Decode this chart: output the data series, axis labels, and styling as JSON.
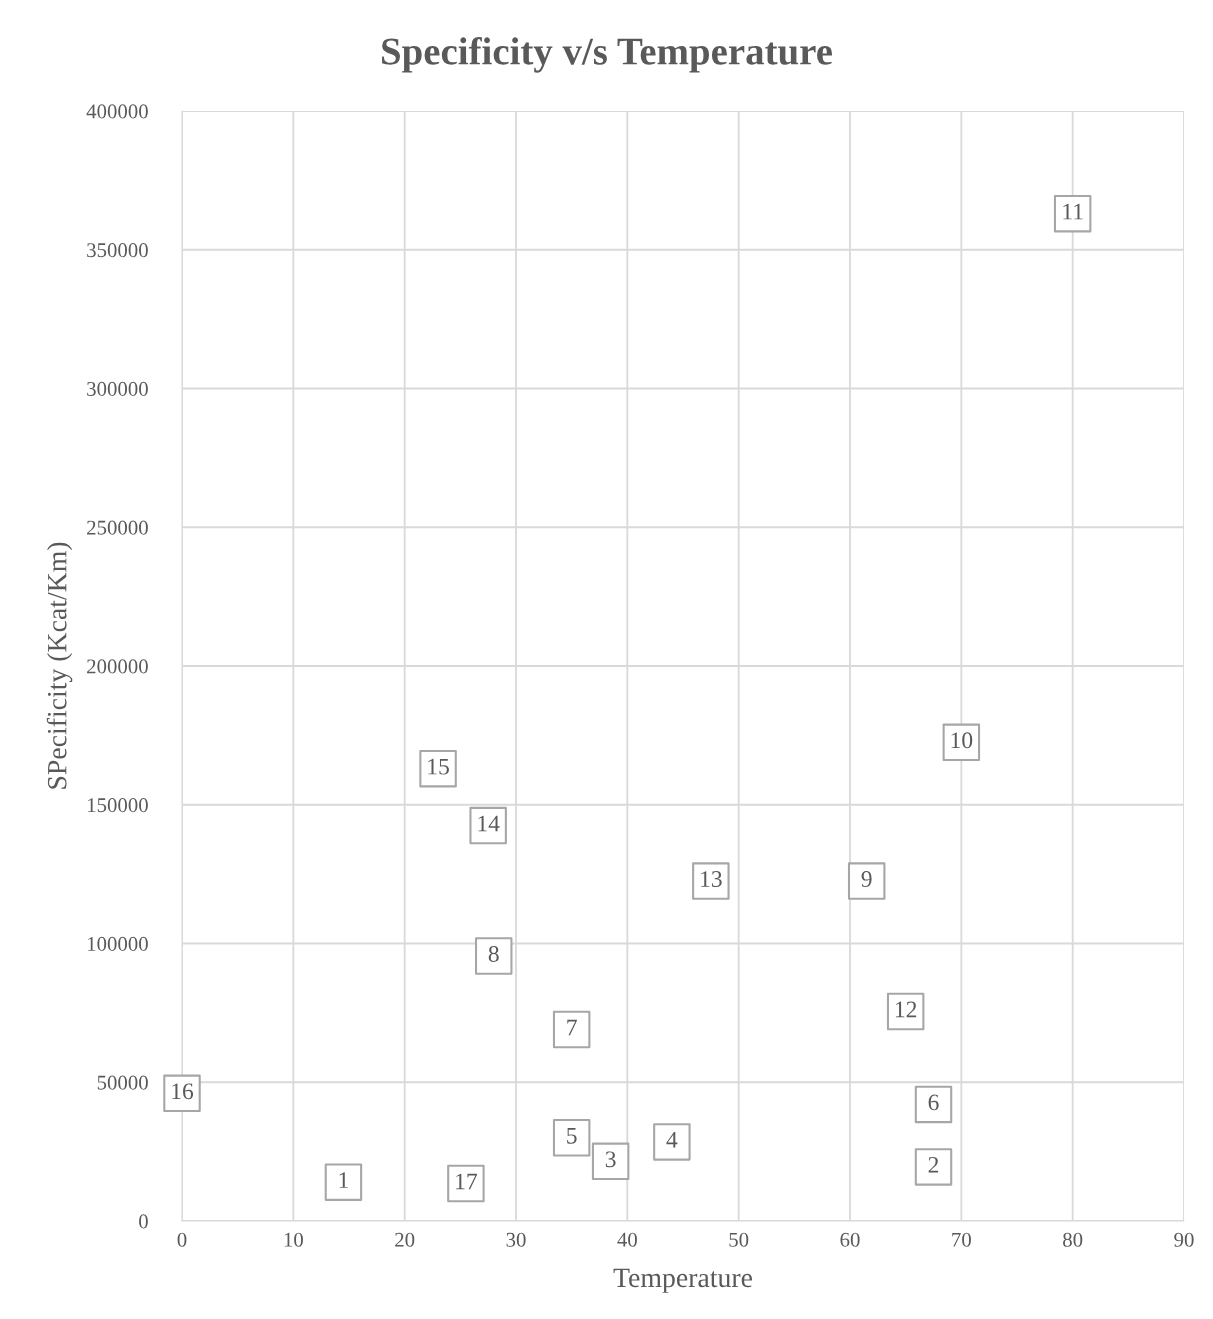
{
  "chart_data": {
    "type": "scatter",
    "title": "Specificity v/s Temperature",
    "xlabel": "Temperature",
    "ylabel": "SPecificity (Kcat/Km)",
    "x": [
      14.5,
      67.5,
      38.5,
      44,
      35,
      67.5,
      35,
      28,
      61.5,
      70,
      80,
      65,
      47.5,
      27.5,
      23,
      0,
      25.5
    ],
    "series": [
      {
        "color": "#a6a6a6",
        "values": [
          14000,
          19500,
          21500,
          28500,
          30000,
          42000,
          69000,
          95500,
          122500,
          172500,
          363000,
          75500,
          122500,
          142500,
          163000,
          46000,
          13500
        ]
      }
    ],
    "annotations": [
      {
        "text": "1",
        "x": 14.5,
        "y": 14000
      },
      {
        "text": "2",
        "x": 67.5,
        "y": 19500
      },
      {
        "text": "3",
        "x": 38.5,
        "y": 21500
      },
      {
        "text": "4",
        "x": 44,
        "y": 28500
      },
      {
        "text": "5",
        "x": 35,
        "y": 30000
      },
      {
        "text": "6",
        "x": 67.5,
        "y": 42000
      },
      {
        "text": "7",
        "x": 35,
        "y": 69000
      },
      {
        "text": "8",
        "x": 28,
        "y": 95500
      },
      {
        "text": "9",
        "x": 61.5,
        "y": 122500
      },
      {
        "text": "10",
        "x": 70,
        "y": 172500
      },
      {
        "text": "11",
        "x": 80,
        "y": 363000
      },
      {
        "text": "12",
        "x": 65,
        "y": 75500
      },
      {
        "text": "13",
        "x": 47.5,
        "y": 122500
      },
      {
        "text": "14",
        "x": 27.5,
        "y": 142500
      },
      {
        "text": "15",
        "x": 23,
        "y": 163000
      },
      {
        "text": "16",
        "x": 0,
        "y": 46000
      },
      {
        "text": "17",
        "x": 25.5,
        "y": 13500
      }
    ],
    "xlim": [
      0,
      90
    ],
    "xticks": [
      0,
      10,
      20,
      30,
      40,
      50,
      60,
      70,
      80,
      90
    ],
    "ylim": [
      0,
      400000
    ],
    "yticks": [
      0,
      50000,
      100000,
      150000,
      200000,
      250000,
      300000,
      350000,
      400000
    ],
    "grid": true,
    "marker": "square"
  }
}
